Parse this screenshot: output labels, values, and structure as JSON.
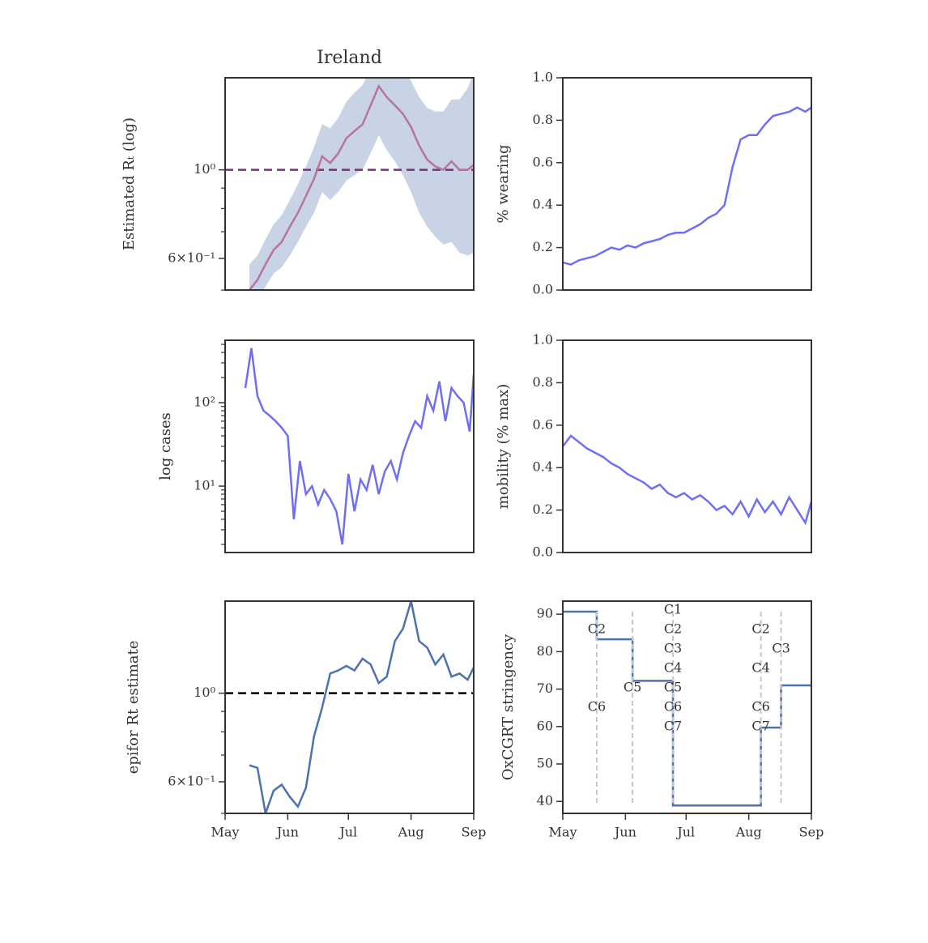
{
  "chart_data": [
    {
      "type": "line",
      "title": "Ireland",
      "ylabel": "Estimated Rₜ (log)",
      "log": true,
      "xlim": [
        0,
        123
      ],
      "ylim": [
        0.5,
        1.7
      ],
      "yticks": [
        {
          "value": 0.6,
          "label": "6×10⁻¹"
        },
        {
          "value": 1,
          "label": "10⁰"
        }
      ],
      "yminorticks": [
        0.5,
        0.7,
        0.8,
        0.9
      ],
      "hline": 1,
      "hline_color": "#6b3a6e",
      "band_color": "#c9d3e6",
      "x": [
        12,
        16,
        20,
        24,
        28,
        32,
        36,
        40,
        44,
        48,
        52,
        56,
        60,
        64,
        68,
        72,
        76,
        80,
        84,
        88,
        92,
        96,
        100,
        104,
        108,
        112,
        116,
        120,
        123
      ],
      "series": [
        {
          "color": "#b8739f",
          "values": [
            0.5,
            0.53,
            0.58,
            0.63,
            0.66,
            0.72,
            0.78,
            0.86,
            0.95,
            1.08,
            1.04,
            1.1,
            1.2,
            1.25,
            1.3,
            1.45,
            1.62,
            1.52,
            1.45,
            1.38,
            1.28,
            1.15,
            1.06,
            1.02,
            1.0,
            1.05,
            1.0,
            1.0,
            1.03
          ],
          "lower": [
            0.44,
            0.47,
            0.51,
            0.55,
            0.57,
            0.61,
            0.66,
            0.72,
            0.78,
            0.88,
            0.84,
            0.88,
            0.94,
            0.97,
            1.0,
            1.1,
            1.22,
            1.12,
            1.05,
            0.97,
            0.88,
            0.78,
            0.72,
            0.68,
            0.65,
            0.66,
            0.62,
            0.61,
            0.62
          ],
          "upper": [
            0.58,
            0.61,
            0.67,
            0.73,
            0.77,
            0.84,
            0.92,
            1.02,
            1.14,
            1.3,
            1.27,
            1.35,
            1.48,
            1.56,
            1.63,
            1.8,
            2.0,
            1.92,
            1.85,
            1.78,
            1.67,
            1.52,
            1.43,
            1.4,
            1.4,
            1.5,
            1.5,
            1.6,
            1.75
          ]
        }
      ]
    },
    {
      "type": "line",
      "ylabel": "% wearing",
      "log": false,
      "xlim": [
        0,
        123
      ],
      "ylim": [
        0,
        1
      ],
      "yticks": [
        {
          "value": 0,
          "label": "0.0"
        },
        {
          "value": 0.2,
          "label": "0.2"
        },
        {
          "value": 0.4,
          "label": "0.4"
        },
        {
          "value": 0.6,
          "label": "0.6"
        },
        {
          "value": 0.8,
          "label": "0.8"
        },
        {
          "value": 1,
          "label": "1.0"
        }
      ],
      "x": [
        0,
        4,
        8,
        12,
        16,
        20,
        24,
        28,
        32,
        36,
        40,
        44,
        48,
        52,
        56,
        60,
        64,
        68,
        72,
        76,
        80,
        84,
        88,
        92,
        96,
        100,
        104,
        108,
        112,
        116,
        120,
        123
      ],
      "series": [
        {
          "color": "#6f6ff5",
          "values": [
            0.13,
            0.12,
            0.14,
            0.15,
            0.16,
            0.18,
            0.2,
            0.19,
            0.21,
            0.2,
            0.22,
            0.23,
            0.24,
            0.26,
            0.27,
            0.27,
            0.29,
            0.31,
            0.34,
            0.36,
            0.4,
            0.58,
            0.71,
            0.73,
            0.73,
            0.78,
            0.82,
            0.83,
            0.84,
            0.86,
            0.84,
            0.86
          ]
        }
      ]
    },
    {
      "type": "line",
      "ylabel": "log cases",
      "log": true,
      "xlim": [
        0,
        123
      ],
      "ylim": [
        1.6,
        560
      ],
      "yticks": [
        {
          "value": 10,
          "label": "10¹"
        },
        {
          "value": 100,
          "label": "10²"
        }
      ],
      "yminorticks": [
        2,
        3,
        4,
        5,
        6,
        7,
        8,
        9,
        20,
        30,
        40,
        50,
        60,
        70,
        80,
        90,
        200,
        300,
        400,
        500
      ],
      "x": [
        10,
        13,
        16,
        19,
        22,
        25,
        28,
        31,
        34,
        37,
        40,
        43,
        46,
        49,
        52,
        55,
        58,
        61,
        64,
        67,
        70,
        73,
        76,
        79,
        82,
        85,
        88,
        91,
        94,
        97,
        100,
        103,
        106,
        109,
        112,
        115,
        118,
        121,
        123
      ],
      "series": [
        {
          "color": "#6f6ff5",
          "values": [
            150,
            450,
            120,
            80,
            70,
            60,
            50,
            40,
            4,
            20,
            8,
            10,
            6,
            9,
            7,
            5,
            2,
            14,
            5,
            12,
            9,
            18,
            8,
            15,
            20,
            12,
            25,
            40,
            60,
            50,
            120,
            80,
            180,
            60,
            150,
            120,
            100,
            45,
            220
          ]
        }
      ]
    },
    {
      "type": "line",
      "ylabel": "mobility (% max)",
      "log": false,
      "xlim": [
        0,
        123
      ],
      "ylim": [
        0,
        1
      ],
      "yticks": [
        {
          "value": 0,
          "label": "0.0"
        },
        {
          "value": 0.2,
          "label": "0.2"
        },
        {
          "value": 0.4,
          "label": "0.4"
        },
        {
          "value": 0.6,
          "label": "0.6"
        },
        {
          "value": 0.8,
          "label": "0.8"
        },
        {
          "value": 1,
          "label": "1.0"
        }
      ],
      "x": [
        0,
        4,
        8,
        12,
        16,
        20,
        24,
        28,
        32,
        36,
        40,
        44,
        48,
        52,
        56,
        60,
        64,
        68,
        72,
        76,
        80,
        84,
        88,
        92,
        96,
        100,
        104,
        108,
        112,
        116,
        120,
        123
      ],
      "series": [
        {
          "color": "#6f6ff5",
          "values": [
            0.5,
            0.55,
            0.52,
            0.49,
            0.47,
            0.45,
            0.42,
            0.4,
            0.37,
            0.35,
            0.33,
            0.3,
            0.32,
            0.28,
            0.26,
            0.28,
            0.25,
            0.27,
            0.24,
            0.2,
            0.22,
            0.18,
            0.24,
            0.17,
            0.25,
            0.19,
            0.24,
            0.18,
            0.26,
            0.2,
            0.14,
            0.24
          ]
        }
      ]
    },
    {
      "type": "line",
      "ylabel": "epifor Rt estimate",
      "log": true,
      "xlim": [
        0,
        123
      ],
      "ylim": [
        0.5,
        1.7
      ],
      "yticks": [
        {
          "value": 0.6,
          "label": "6×10⁻¹"
        },
        {
          "value": 1,
          "label": "10⁰"
        }
      ],
      "yminorticks": [
        0.5,
        0.7,
        0.8,
        0.9
      ],
      "hline": 1,
      "hline_color": "#000000",
      "xticks": [
        {
          "value": 0,
          "label": "May"
        },
        {
          "value": 31,
          "label": "Jun"
        },
        {
          "value": 61,
          "label": "Jul"
        },
        {
          "value": 92,
          "label": "Aug"
        },
        {
          "value": 123,
          "label": "Sep"
        }
      ],
      "x": [
        12,
        16,
        20,
        24,
        28,
        32,
        36,
        40,
        44,
        48,
        52,
        56,
        60,
        64,
        68,
        72,
        76,
        80,
        84,
        88,
        92,
        96,
        100,
        104,
        108,
        112,
        116,
        120,
        123
      ],
      "series": [
        {
          "color": "#4c72b0",
          "values": [
            0.66,
            0.65,
            0.5,
            0.57,
            0.59,
            0.55,
            0.52,
            0.58,
            0.78,
            0.92,
            1.12,
            1.14,
            1.17,
            1.14,
            1.22,
            1.18,
            1.06,
            1.1,
            1.35,
            1.45,
            1.7,
            1.35,
            1.3,
            1.18,
            1.25,
            1.1,
            1.12,
            1.08,
            1.16
          ]
        }
      ]
    },
    {
      "type": "step",
      "ylabel": "OxCGRT stringency",
      "log": false,
      "xlim": [
        0,
        123
      ],
      "ylim": [
        36.8,
        93.5
      ],
      "yticks": [
        40,
        50,
        60,
        70,
        80,
        90
      ],
      "xticks": [
        {
          "value": 0,
          "label": "May"
        },
        {
          "value": 31,
          "label": "Jun"
        },
        {
          "value": 61,
          "label": "Jul"
        },
        {
          "value": 92,
          "label": "Aug"
        },
        {
          "value": 123,
          "label": "Sep"
        }
      ],
      "x": [
        0,
        16.8,
        34.5,
        54.5,
        98,
        108,
        123
      ],
      "series": [
        {
          "color": "#4c72b0",
          "values": [
            90.7,
            83.3,
            72.2,
            38.9,
            59.7,
            71,
            71
          ]
        }
      ],
      "events": [
        {
          "x": 16.8,
          "labels": [
            "C2",
            "C6"
          ]
        },
        {
          "x": 34.5,
          "labels": [
            "C5"
          ]
        },
        {
          "x": 54.5,
          "labels": [
            "C1",
            "C2",
            "C3",
            "C4",
            "C5",
            "C6",
            "C7"
          ]
        },
        {
          "x": 98,
          "labels": [
            "C2",
            "C4",
            "C6",
            "C7"
          ]
        },
        {
          "x": 108,
          "labels": [
            "C3"
          ]
        }
      ]
    }
  ]
}
